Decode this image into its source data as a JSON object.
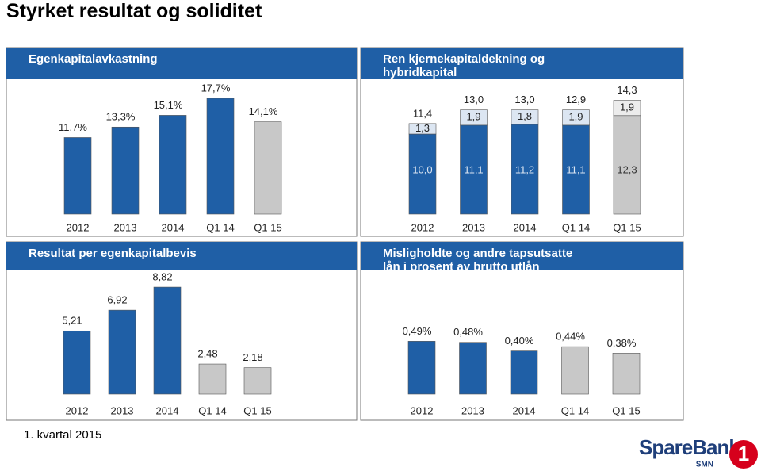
{
  "title": "Styrket resultat og soliditet",
  "footer": "1. kvartal 2015",
  "logo": {
    "name": "SpareBank",
    "sub": "SMN",
    "number": "1"
  },
  "chart_data": [
    {
      "type": "bar",
      "title": "Egenkapitalavkastning",
      "categories": [
        "2012",
        "2013",
        "2014",
        "Q1 14",
        "Q1 15"
      ],
      "values": [
        11.7,
        13.3,
        15.1,
        17.7,
        14.1
      ],
      "value_labels": [
        "11,7%",
        "13,3%",
        "15,1%",
        "17,7%",
        "14,1%"
      ],
      "colors": [
        "#1f5fa6",
        "#1f5fa6",
        "#1f5fa6",
        "#1f5fa6",
        "#c8c8c8"
      ]
    },
    {
      "type": "stacked_bar",
      "title": "Ren kjernekapitaldekning og hybridkapital",
      "categories": [
        "2012",
        "2013",
        "2014",
        "Q1 14",
        "Q1 15"
      ],
      "series": [
        {
          "values": [
            10.0,
            11.1,
            11.2,
            11.1,
            12.3
          ],
          "value_labels": [
            "10,0",
            "11,1",
            "11,2",
            "11,1",
            "12,3"
          ],
          "colors": [
            "#1f5fa6",
            "#1f5fa6",
            "#1f5fa6",
            "#1f5fa6",
            "#c8c8c8"
          ]
        },
        {
          "values": [
            1.3,
            1.9,
            1.8,
            1.9,
            1.9
          ],
          "value_labels": [
            "1,3",
            "1,9",
            "1,8",
            "1,9",
            "1,9"
          ],
          "colors": [
            "#dce6f2",
            "#dce6f2",
            "#dce6f2",
            "#dce6f2",
            "#ececec"
          ]
        }
      ],
      "total_labels": [
        "11,4",
        "13,0",
        "13,0",
        "12,9",
        "14,3"
      ]
    },
    {
      "type": "bar",
      "title": "Resultat per egenkapitalbevis",
      "categories": [
        "2012",
        "2013",
        "2014",
        "Q1 14",
        "Q1 15"
      ],
      "values": [
        5.21,
        6.92,
        8.82,
        2.48,
        2.18
      ],
      "value_labels": [
        "5,21",
        "6,92",
        "8,82",
        "2,48",
        "2,18"
      ],
      "colors": [
        "#1f5fa6",
        "#1f5fa6",
        "#1f5fa6",
        "#c8c8c8",
        "#c8c8c8"
      ]
    },
    {
      "type": "bar",
      "title": "Misligholdte og andre tapsutsatte lån i prosent av brutto utlån",
      "categories": [
        "2012",
        "2013",
        "2014",
        "Q1 14",
        "Q1 15"
      ],
      "values": [
        0.49,
        0.48,
        0.4,
        0.44,
        0.38
      ],
      "value_labels": [
        "0,49%",
        "0,48%",
        "0,40%",
        "0,44%",
        "0,38%"
      ],
      "colors": [
        "#1f5fa6",
        "#1f5fa6",
        "#1f5fa6",
        "#c8c8c8",
        "#c8c8c8"
      ]
    }
  ]
}
